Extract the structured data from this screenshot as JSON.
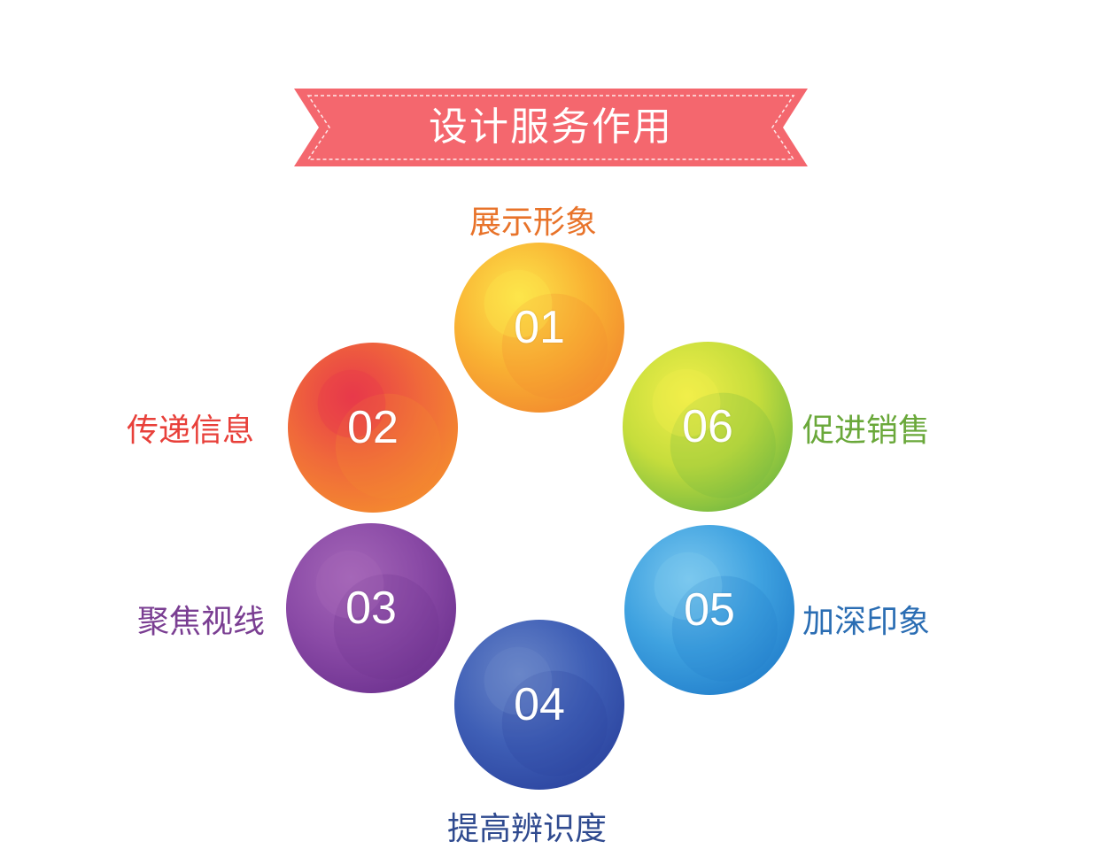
{
  "banner": {
    "title": "设计服务作用",
    "color": "#f4676e"
  },
  "items": [
    {
      "number": "01",
      "label": "展示形象",
      "label_color": "#e8732a",
      "colors": [
        "#fde64b",
        "#f9b233",
        "#f28a2e"
      ]
    },
    {
      "number": "02",
      "label": "传递信息",
      "label_color": "#e8403a",
      "colors": [
        "#e8394a",
        "#f06a3a",
        "#f48c2e"
      ]
    },
    {
      "number": "03",
      "label": "聚焦视线",
      "label_color": "#7a3e92",
      "colors": [
        "#a567b8",
        "#8a4aa6",
        "#6e3290"
      ]
    },
    {
      "number": "04",
      "label": "提高辨识度",
      "label_color": "#2f4a8f",
      "colors": [
        "#6a86c8",
        "#3f5fb6",
        "#2c45a0"
      ]
    },
    {
      "number": "05",
      "label": "加深印象",
      "label_color": "#2a6db3",
      "colors": [
        "#7cc8ef",
        "#3fa2e0",
        "#2380cc"
      ]
    },
    {
      "number": "06",
      "label": "促进销售",
      "label_color": "#6aa83a",
      "colors": [
        "#f2ef4a",
        "#c6dd3c",
        "#74b941"
      ]
    }
  ]
}
